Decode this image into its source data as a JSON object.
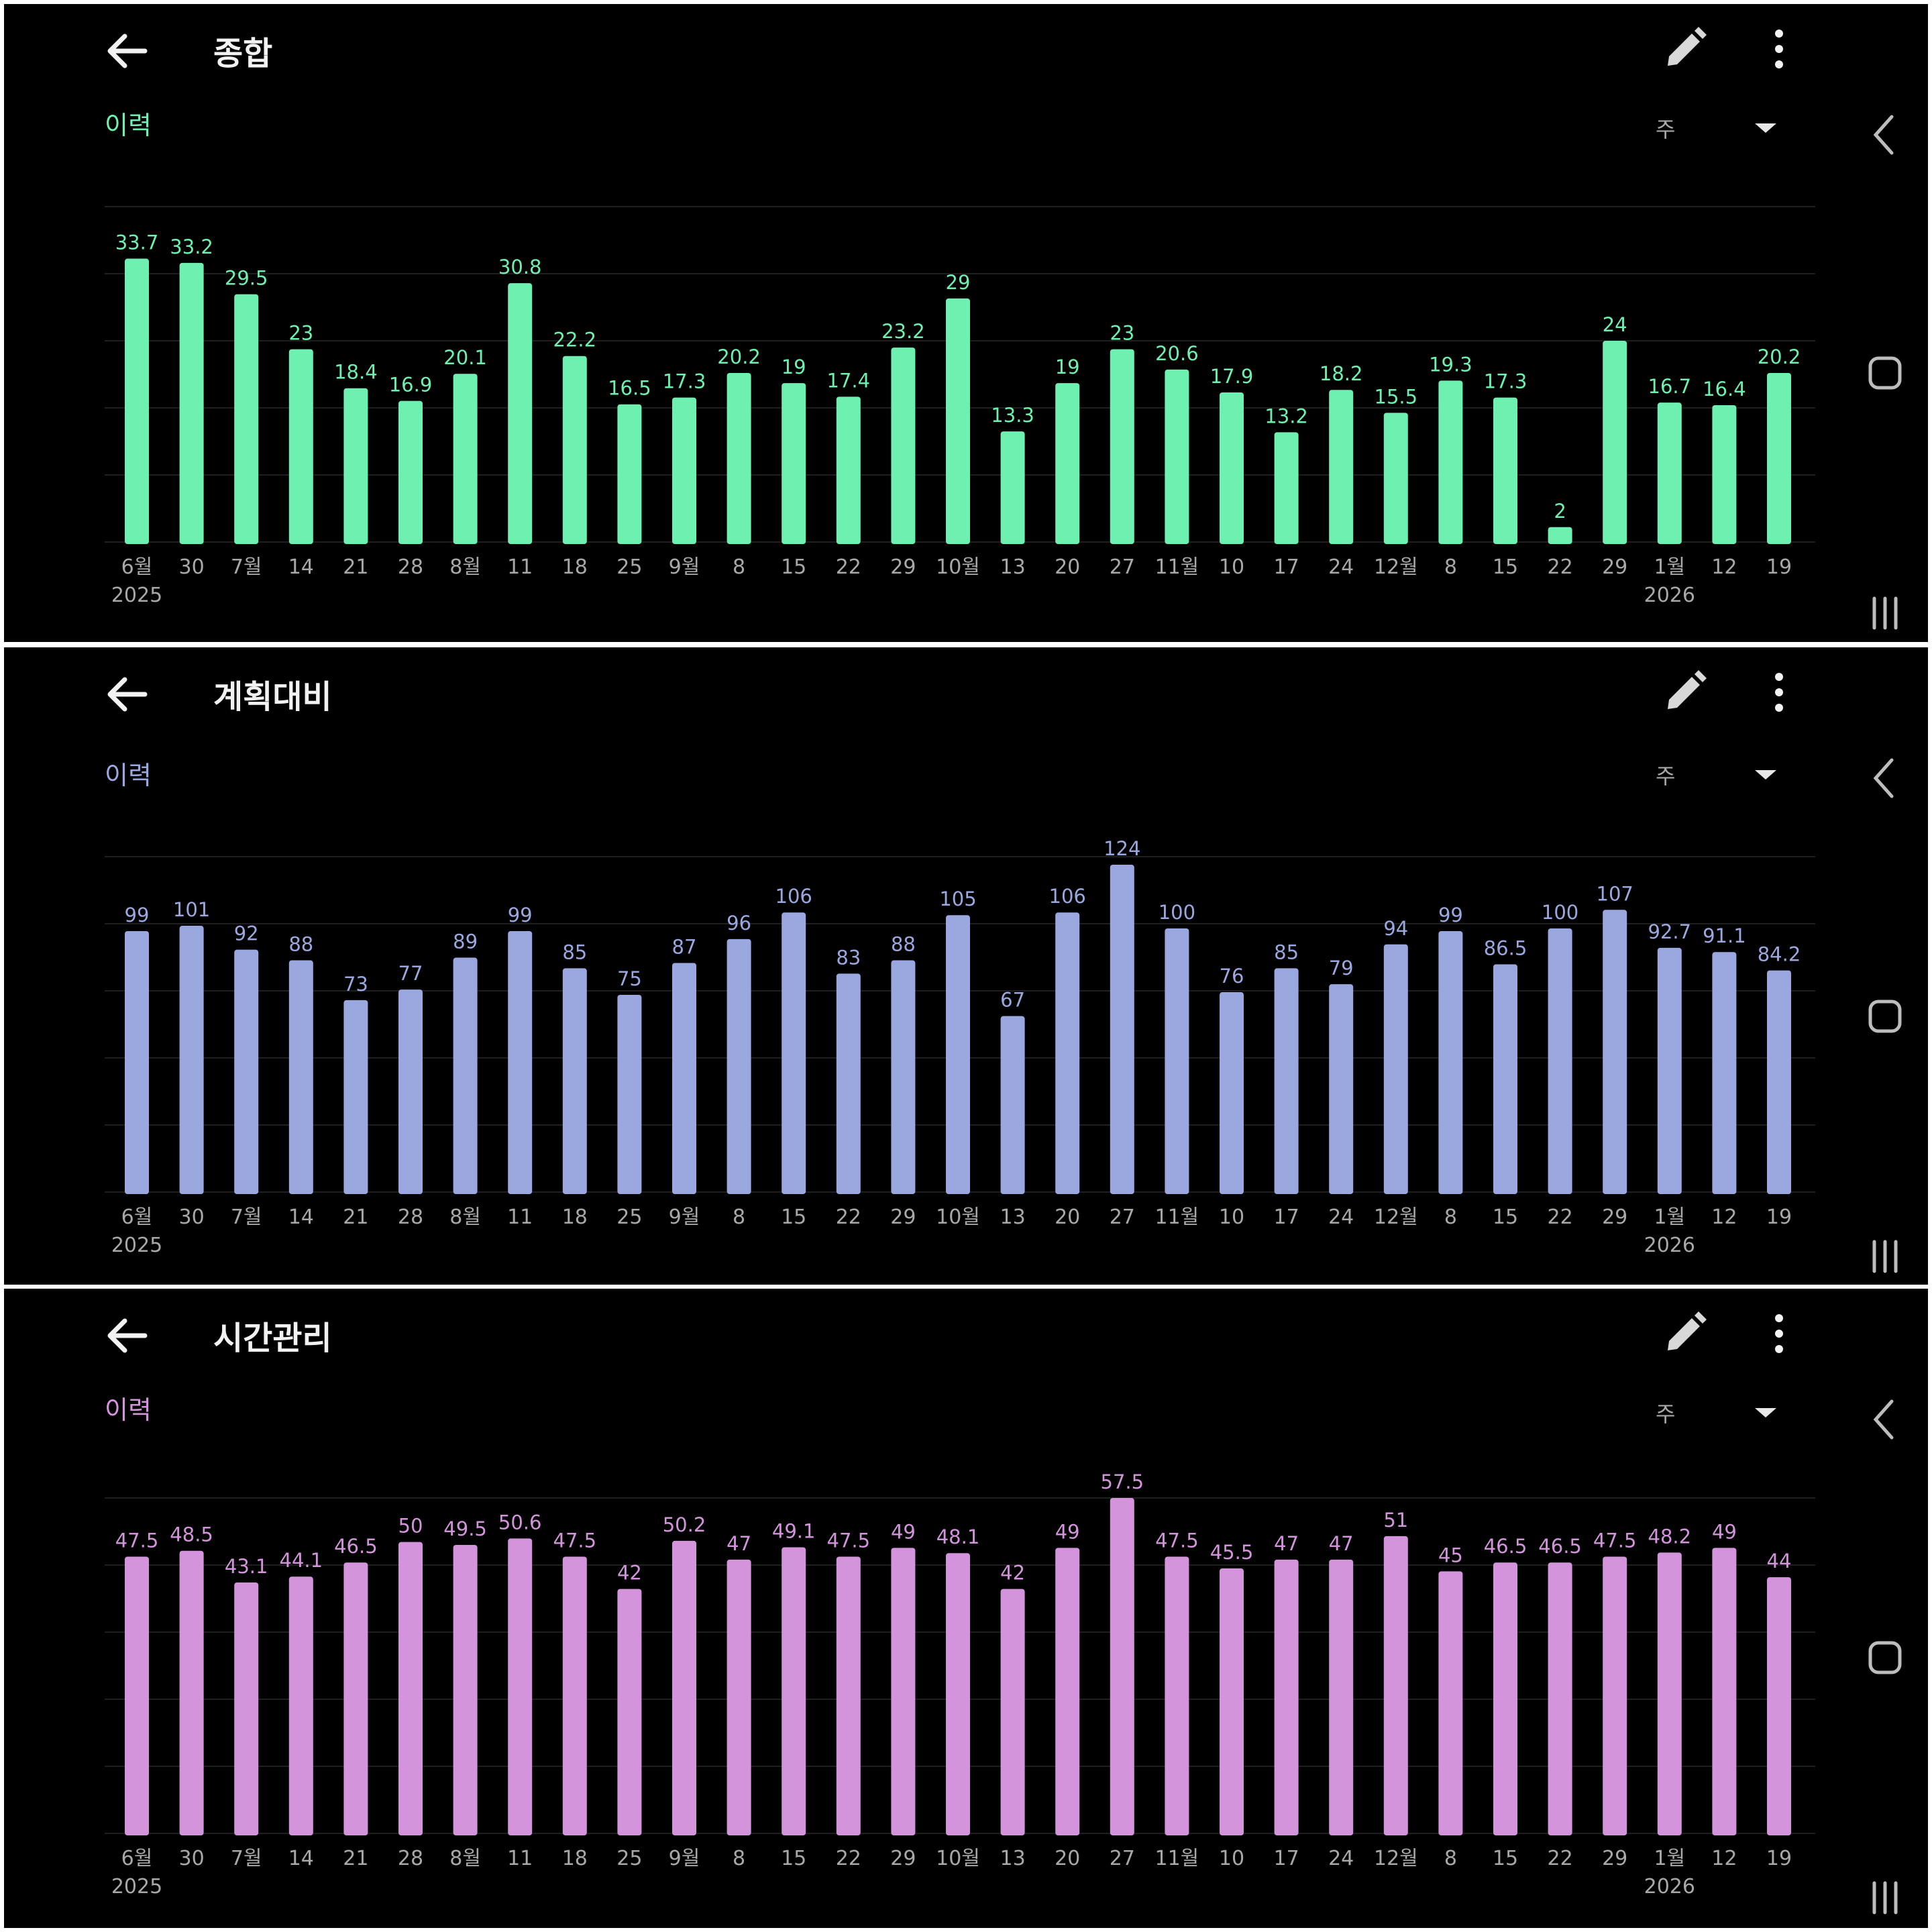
{
  "x_labels": [
    "6월",
    "30",
    "7월",
    "14",
    "21",
    "28",
    "8월",
    "11",
    "18",
    "25",
    "9월",
    "8",
    "15",
    "22",
    "29",
    "10월",
    "13",
    "20",
    "27",
    "11월",
    "10",
    "17",
    "24",
    "12월",
    "8",
    "15",
    "22",
    "29",
    "1월",
    "12",
    "19"
  ],
  "year_labels": [
    {
      "index": 0,
      "text": "2025"
    },
    {
      "index": 28,
      "text": "2026"
    }
  ],
  "colors": {
    "background": "#000000",
    "text_primary": "#f2f2f2",
    "tick_text": "#a8a8a8",
    "gridline": "#1f1f1f",
    "panel_divider": "#ffffff"
  },
  "icons": {
    "back": "arrow-left-icon",
    "edit": "pencil-icon",
    "more": "more-vertical-icon",
    "dropdown": "caret-down-icon",
    "nav_back": "chevron-left-icon",
    "nav_home": "home-square-icon",
    "nav_recents": "recents-bars-icon"
  },
  "panels": [
    {
      "title": "종합",
      "history_label": "이력",
      "period": "주",
      "accent": "#6ef0b0",
      "label_color": "#6ef0b0"
    },
    {
      "title": "계획대비",
      "history_label": "이력",
      "period": "주",
      "accent": "#9ba8e0",
      "label_color": "#9ba8e0"
    },
    {
      "title": "시간관리",
      "history_label": "이력",
      "period": "주",
      "accent": "#d394dc",
      "label_color": "#d394dc"
    }
  ],
  "chart_data": [
    {
      "type": "bar",
      "categories": [
        "6월",
        "30",
        "7월",
        "14",
        "21",
        "28",
        "8월",
        "11",
        "18",
        "25",
        "9월",
        "8",
        "15",
        "22",
        "29",
        "10월",
        "13",
        "20",
        "27",
        "11월",
        "10",
        "17",
        "24",
        "12월",
        "8",
        "15",
        "22",
        "29",
        "1월",
        "12",
        "19"
      ],
      "values": [
        33.7,
        33.2,
        29.5,
        23,
        18.4,
        16.9,
        20.1,
        30.8,
        22.2,
        16.5,
        17.3,
        20.2,
        19,
        17.4,
        23.2,
        29,
        13.3,
        19,
        23,
        20.6,
        17.9,
        13.2,
        18.2,
        15.5,
        19.3,
        17.3,
        2,
        24,
        16.7,
        16.4,
        20.2
      ],
      "value_labels": [
        "33.7",
        "33.2",
        "29.5",
        "23",
        "18.4",
        "16.9",
        "20.1",
        "30.8",
        "22.2",
        "16.5",
        "17.3",
        "20.2",
        "19",
        "17.4",
        "23.2",
        "29",
        "13.3",
        "19",
        "23",
        "20.6",
        "17.9",
        "13.2",
        "18.2",
        "15.5",
        "19.3",
        "17.3",
        "2",
        "24",
        "16.7",
        "16.4",
        "20.2"
      ],
      "ylim": [
        0,
        40
      ],
      "grid": true,
      "title": "종합"
    },
    {
      "type": "bar",
      "categories": [
        "6월",
        "30",
        "7월",
        "14",
        "21",
        "28",
        "8월",
        "11",
        "18",
        "25",
        "9월",
        "8",
        "15",
        "22",
        "29",
        "10월",
        "13",
        "20",
        "27",
        "11월",
        "10",
        "17",
        "24",
        "12월",
        "8",
        "15",
        "22",
        "29",
        "1월",
        "12",
        "19"
      ],
      "values": [
        99,
        101,
        92,
        88,
        73,
        77,
        89,
        99,
        85,
        75,
        87,
        96,
        106,
        83,
        88,
        105,
        67,
        106,
        124,
        100,
        76,
        85,
        79,
        94,
        99,
        86.5,
        100,
        107,
        92.7,
        91.1,
        84.2
      ],
      "value_labels": [
        "99",
        "101",
        "92",
        "88",
        "73",
        "77",
        "89",
        "99",
        "85",
        "75",
        "87",
        "96",
        "106",
        "83",
        "88",
        "105",
        "67",
        "106",
        "124",
        "100",
        "76",
        "85",
        "79",
        "94",
        "99",
        "86.5",
        "100",
        "107",
        "92.7",
        "91.1",
        "84.2"
      ],
      "ylim": [
        0,
        125
      ],
      "grid": true,
      "title": "계획대비"
    },
    {
      "type": "bar",
      "categories": [
        "6월",
        "30",
        "7월",
        "14",
        "21",
        "28",
        "8월",
        "11",
        "18",
        "25",
        "9월",
        "8",
        "15",
        "22",
        "29",
        "10월",
        "13",
        "20",
        "27",
        "11월",
        "10",
        "17",
        "24",
        "12월",
        "8",
        "15",
        "22",
        "29",
        "1월",
        "12",
        "19"
      ],
      "values": [
        47.5,
        48.5,
        43.1,
        44.1,
        46.5,
        50,
        49.5,
        50.6,
        47.5,
        42,
        50.2,
        47,
        49.1,
        47.5,
        49,
        48.1,
        42,
        49,
        57.5,
        47.5,
        45.5,
        47,
        47,
        51,
        45,
        46.5,
        46.5,
        47.5,
        48.2,
        49,
        44
      ],
      "value_labels": [
        "47.5",
        "48.5",
        "43.1",
        "44.1",
        "46.5",
        "50",
        "49.5",
        "50.6",
        "47.5",
        "42",
        "50.2",
        "47",
        "49.1",
        "47.5",
        "49",
        "48.1",
        "42",
        "49",
        "57.5",
        "47.5",
        "45.5",
        "47",
        "47",
        "51",
        "45",
        "46.5",
        "46.5",
        "47.5",
        "48.2",
        "49",
        "44"
      ],
      "ylim": [
        0,
        57.5
      ],
      "grid": true,
      "title": "시간관리"
    }
  ]
}
